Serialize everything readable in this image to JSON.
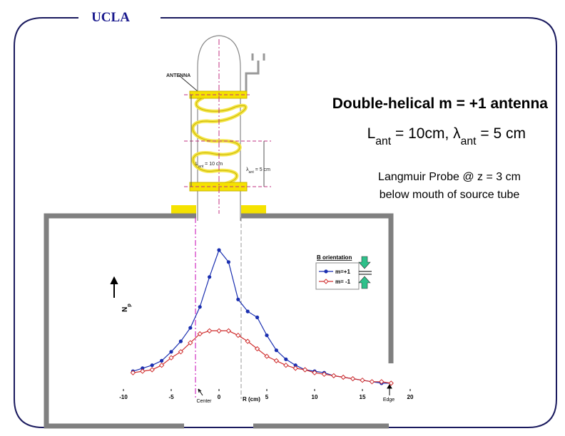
{
  "logo": "UCLA",
  "title": "Double-helical m = +1 antenna",
  "subtitle": [
    {
      "text": "L"
    },
    {
      "text": "ant",
      "sub": true
    },
    {
      "text": " = 10cm, "
    },
    {
      "text": "λ"
    },
    {
      "text": "ant",
      "sub": true
    },
    {
      "text": " = 5 cm"
    }
  ],
  "probe_note": [
    "Langmuir Probe @ z = 3 cm",
    "below mouth of source tube"
  ],
  "diagram": {
    "antenna_label": "ANTENNA",
    "length_label": [
      {
        "text": "L"
      },
      {
        "text": "ant",
        "sub": true
      },
      {
        "text": " = 10 cm"
      }
    ],
    "wavelength_label": [
      {
        "text": "λ"
      },
      {
        "text": "ant",
        "sub": true
      },
      {
        "text": " = 5 cm"
      }
    ]
  },
  "chart_data": {
    "type": "line",
    "y_label": [
      {
        "text": "N"
      },
      {
        "text": "p",
        "sub": true
      }
    ],
    "x_label": "R (cm)",
    "annotations": [
      "Center",
      "Edge"
    ],
    "legend_title": "B orientation",
    "x": [
      -9,
      -8,
      -7,
      -6,
      -5,
      -4,
      -3,
      -2,
      -1,
      0,
      1,
      2,
      3,
      4,
      5,
      6,
      7,
      8,
      9,
      10,
      11,
      12,
      13,
      14,
      15,
      16,
      17,
      18
    ],
    "series": [
      {
        "name": "m=+1",
        "color": "#1a2fb0",
        "marker": "circle",
        "values": [
          0.09,
          0.11,
          0.13,
          0.16,
          0.22,
          0.29,
          0.38,
          0.52,
          0.72,
          0.9,
          0.82,
          0.57,
          0.49,
          0.45,
          0.33,
          0.23,
          0.17,
          0.13,
          0.1,
          0.09,
          0.08,
          0.06,
          0.05,
          0.04,
          0.03,
          0.02,
          0.01,
          0.01
        ]
      },
      {
        "name": "m= -1",
        "color": "#d03030",
        "marker": "diamond",
        "values": [
          0.08,
          0.09,
          0.1,
          0.13,
          0.18,
          0.22,
          0.28,
          0.34,
          0.36,
          0.36,
          0.36,
          0.33,
          0.29,
          0.24,
          0.19,
          0.16,
          0.13,
          0.11,
          0.1,
          0.08,
          0.07,
          0.06,
          0.05,
          0.04,
          0.03,
          0.02,
          0.02,
          0.01
        ]
      }
    ],
    "xlim": [
      -10,
      20
    ],
    "ylim": [
      0,
      1
    ],
    "xticks": [
      -10,
      -5,
      0,
      5,
      10,
      15,
      20
    ]
  }
}
